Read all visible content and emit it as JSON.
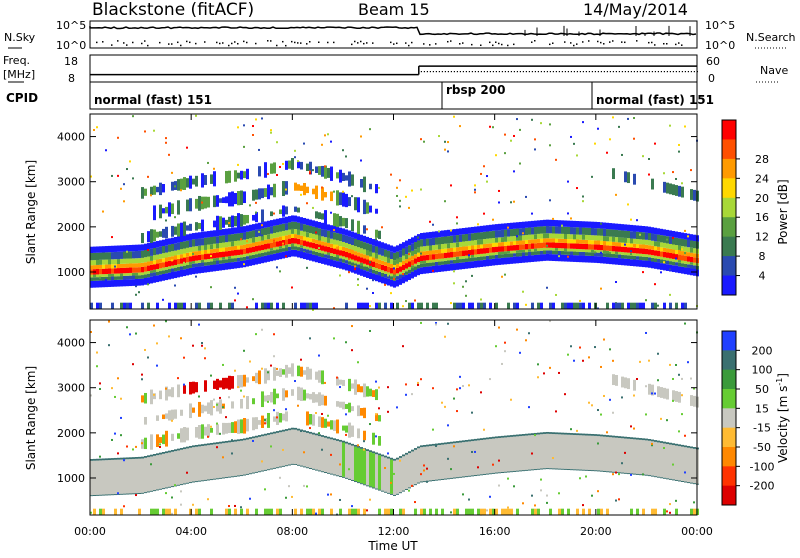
{
  "header": {
    "station": "Blackstone (fitACF)",
    "beam": "Beam 15",
    "date": "14/May/2014"
  },
  "noise_panel": {
    "left_label": "N.Sky",
    "right_label": "N.Search",
    "left_ticks": [
      "10^5",
      "10^0"
    ],
    "right_ticks": [
      "10^5",
      "10^0"
    ]
  },
  "freq_panel": {
    "left_label_line1": "Freq.",
    "left_label_line2": "[MHz]",
    "right_label": "Nave",
    "left_ticks": [
      "18",
      "8"
    ],
    "right_ticks": [
      "60",
      "0"
    ]
  },
  "cpid_panel": {
    "label": "CPID",
    "segments": [
      "normal (fast) 151",
      "rbsp 200",
      "normal (fast) 151"
    ]
  },
  "power_panel": {
    "ylabel": "Slant Range [km]",
    "y_ticks": [
      "1000",
      "2000",
      "3000",
      "4000"
    ],
    "colorbar_label": "Power [dB]",
    "colorbar_ticks": [
      "4",
      "8",
      "12",
      "16",
      "20",
      "24",
      "28"
    ],
    "colors": [
      "#1a1aff",
      "#2a4ab0",
      "#3a7a50",
      "#5aa040",
      "#a8d838",
      "#ffd800",
      "#ff9a00",
      "#ff5000",
      "#ff0000"
    ]
  },
  "velocity_panel": {
    "ylabel": "Slant Range [km]",
    "y_ticks": [
      "1000",
      "2000",
      "3000",
      "4000"
    ],
    "colorbar_label": "Velocity [m s",
    "colorbar_label_sup": "-1",
    "colorbar_ticks": [
      "200",
      "100",
      "50",
      "15",
      "-15",
      "-50",
      "-100",
      "-200"
    ],
    "colors": [
      "#2040ff",
      "#3a7070",
      "#3a9a3a",
      "#66cc33",
      "#c8c8c0",
      "#ffbb33",
      "#ff8800",
      "#ff3300",
      "#dd0000"
    ]
  },
  "x_axis": {
    "label": "Time UT",
    "ticks": [
      "00:00",
      "04:00",
      "08:00",
      "12:00",
      "16:00",
      "20:00",
      "00:00"
    ]
  },
  "chart_data": {
    "type": "heatmap",
    "title": "Blackstone (fitACF)",
    "subtitle": "Beam 15",
    "date": "14/May/2014",
    "xlabel": "Time UT",
    "ylabel": "Slant Range [km]",
    "xlim": [
      "00:00",
      "24:00"
    ],
    "ylim": [
      180,
      4500
    ],
    "cpid_segments": [
      {
        "name": "normal (fast) 151",
        "start": "00:00",
        "end": "14:00"
      },
      {
        "name": "rbsp 200",
        "start": "14:00",
        "end": "20:00"
      },
      {
        "name": "normal (fast) 151",
        "start": "20:00",
        "end": "24:00"
      }
    ],
    "frequency_mhz": [
      {
        "start": "00:00",
        "end": "13:00",
        "value": 10
      },
      {
        "start": "13:00",
        "end": "24:00",
        "value": 15
      }
    ],
    "power_colorbar_range_db": [
      0,
      30
    ],
    "velocity_colorbar_range_ms": [
      -200,
      200
    ],
    "main_echo_band_km": [
      {
        "time": "00:00",
        "range": 1000
      },
      {
        "time": "02:00",
        "range": 1050
      },
      {
        "time": "04:00",
        "range": 1300
      },
      {
        "time": "06:00",
        "range": 1450
      },
      {
        "time": "08:00",
        "range": 1700
      },
      {
        "time": "10:00",
        "range": 1400
      },
      {
        "time": "12:00",
        "range": 1000
      },
      {
        "time": "13:00",
        "range": 1300
      },
      {
        "time": "16:00",
        "range": 1500
      },
      {
        "time": "18:00",
        "range": 1600
      },
      {
        "time": "20:00",
        "range": 1550
      },
      {
        "time": "22:00",
        "range": 1450
      },
      {
        "time": "24:00",
        "range": 1250
      }
    ]
  }
}
